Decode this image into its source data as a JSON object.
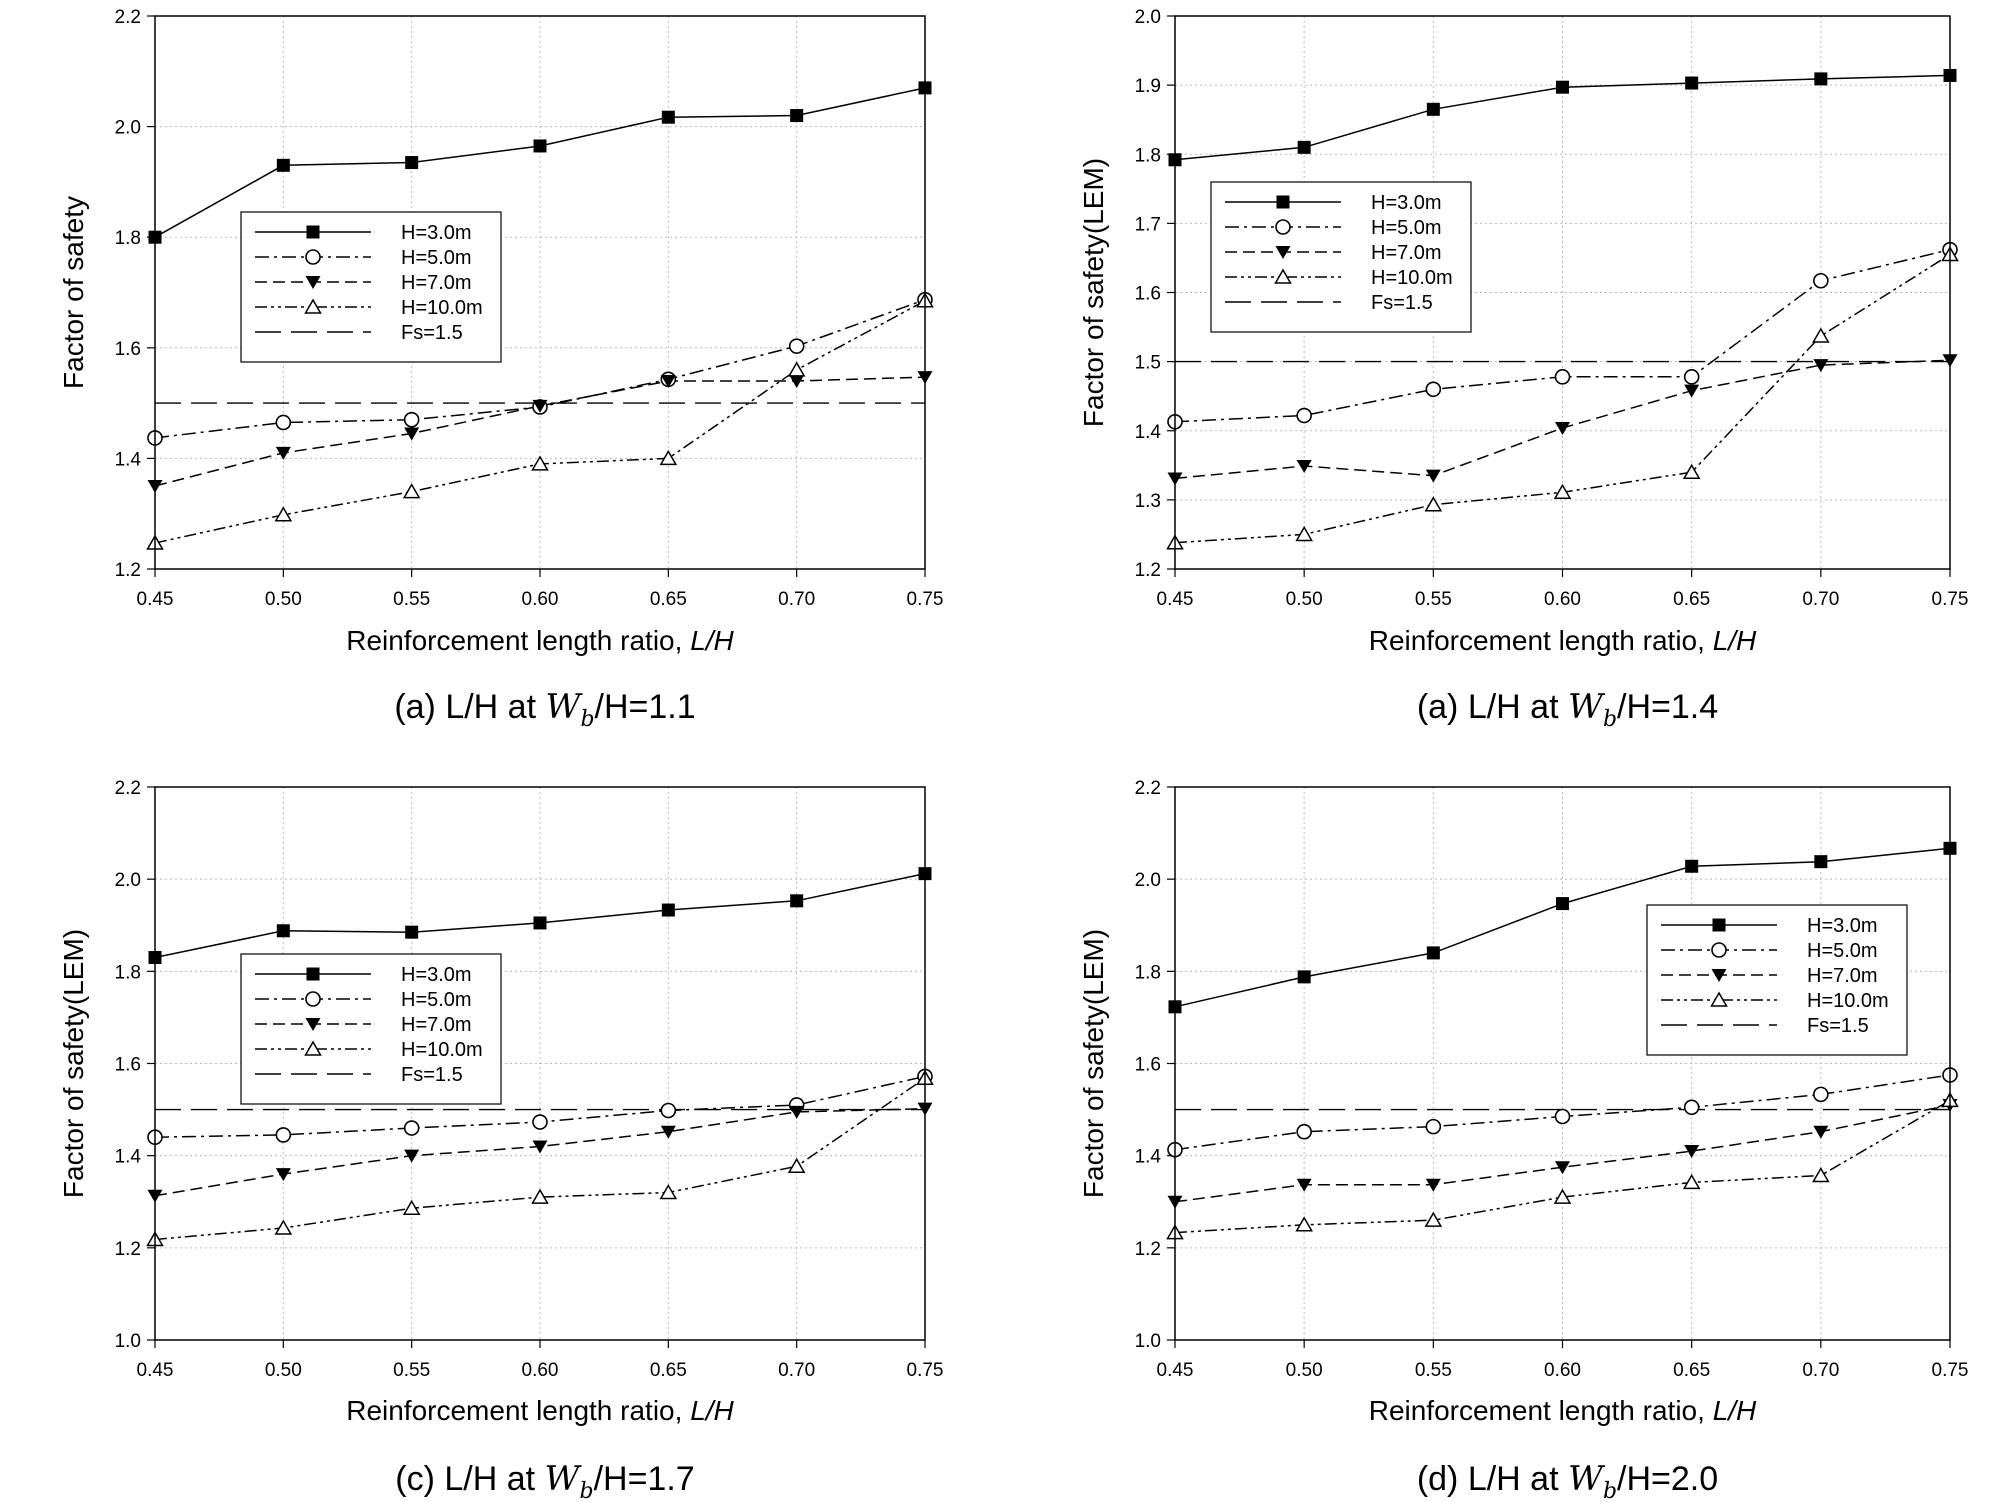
{
  "chart_data": [
    {
      "type": "line",
      "caption": {
        "prefix": "(a) L/H at ",
        "w": "W",
        "sub": "b",
        "suffix": "/H=1.1"
      },
      "xlabel": "Reinforcement length ratio, ",
      "xlabel_italic": "L/H",
      "ylabel": "Factor of safety",
      "xlim": [
        0.45,
        0.75
      ],
      "ylim": [
        1.2,
        2.2
      ],
      "x_ticks": [
        "0.45",
        "0.50",
        "0.55",
        "0.60",
        "0.65",
        "0.70",
        "0.75"
      ],
      "y_ticks": [
        "1.2",
        "1.4",
        "1.6",
        "1.8",
        "2.0",
        "2.2"
      ],
      "legend_position": "center-left",
      "x": [
        0.45,
        0.5,
        0.55,
        0.6,
        0.65,
        0.7,
        0.75
      ],
      "series": [
        {
          "name": "H=3.0m",
          "marker": "filled-square",
          "dash": "solid",
          "values": [
            1.8,
            1.93,
            1.935,
            1.965,
            2.017,
            2.02,
            2.07
          ]
        },
        {
          "name": "H=5.0m",
          "marker": "open-circle",
          "dash": "dashdot",
          "values": [
            1.437,
            1.465,
            1.47,
            1.493,
            1.543,
            1.603,
            1.687
          ]
        },
        {
          "name": "H=7.0m",
          "marker": "filled-triangle-down",
          "dash": "dashed",
          "values": [
            1.35,
            1.41,
            1.445,
            1.495,
            1.54,
            1.54,
            1.547
          ]
        },
        {
          "name": "H=10.0m",
          "marker": "open-triangle-up",
          "dash": "dashdotdot",
          "values": [
            1.247,
            1.298,
            1.34,
            1.39,
            1.4,
            1.56,
            1.685
          ]
        },
        {
          "name": "Fs=1.5",
          "marker": "none",
          "dash": "longdash",
          "values": [
            1.5,
            1.5,
            1.5,
            1.5,
            1.5,
            1.5,
            1.5
          ]
        }
      ]
    },
    {
      "type": "line",
      "caption": {
        "prefix": "(a) L/H at ",
        "w": "W",
        "sub": "b",
        "suffix": "/H=1.4"
      },
      "xlabel": "Reinforcement length ratio, ",
      "xlabel_italic": "L/H",
      "ylabel": "Factor of safety(LEM)",
      "xlim": [
        0.45,
        0.75
      ],
      "ylim": [
        1.2,
        2.0
      ],
      "x_ticks": [
        "0.45",
        "0.50",
        "0.55",
        "0.60",
        "0.65",
        "0.70",
        "0.75"
      ],
      "y_ticks": [
        "1.2",
        "1.3",
        "1.4",
        "1.5",
        "1.6",
        "1.7",
        "1.8",
        "1.9",
        "2.0"
      ],
      "legend_position": "center-left",
      "x": [
        0.45,
        0.5,
        0.55,
        0.6,
        0.65,
        0.7,
        0.75
      ],
      "series": [
        {
          "name": "H=3.0m",
          "marker": "filled-square",
          "dash": "solid",
          "values": [
            1.792,
            1.81,
            1.865,
            1.897,
            1.903,
            1.909,
            1.914
          ]
        },
        {
          "name": "H=5.0m",
          "marker": "open-circle",
          "dash": "dashdot",
          "values": [
            1.413,
            1.422,
            1.46,
            1.478,
            1.478,
            1.617,
            1.662
          ]
        },
        {
          "name": "H=7.0m",
          "marker": "filled-triangle-down",
          "dash": "dashed",
          "values": [
            1.331,
            1.349,
            1.335,
            1.404,
            1.458,
            1.495,
            1.502
          ]
        },
        {
          "name": "H=10.0m",
          "marker": "open-triangle-up",
          "dash": "dashdotdot",
          "values": [
            1.238,
            1.25,
            1.293,
            1.311,
            1.34,
            1.537,
            1.655
          ]
        },
        {
          "name": "Fs=1.5",
          "marker": "none",
          "dash": "longdash",
          "values": [
            1.5,
            1.5,
            1.5,
            1.5,
            1.5,
            1.5,
            1.5
          ]
        }
      ]
    },
    {
      "type": "line",
      "caption": {
        "prefix": "(c) L/H at ",
        "w": "W",
        "sub": "b",
        "suffix": "/H=1.7"
      },
      "xlabel": "Reinforcement length ratio, ",
      "xlabel_italic": "L/H",
      "ylabel": "Factor of safety(LEM)",
      "xlim": [
        0.45,
        0.75
      ],
      "ylim": [
        1.0,
        2.2
      ],
      "x_ticks": [
        "0.45",
        "0.50",
        "0.55",
        "0.60",
        "0.65",
        "0.70",
        "0.75"
      ],
      "y_ticks": [
        "1.0",
        "1.2",
        "1.4",
        "1.6",
        "1.8",
        "2.0",
        "2.2"
      ],
      "legend_position": "center-left",
      "x": [
        0.45,
        0.5,
        0.55,
        0.6,
        0.65,
        0.7,
        0.75
      ],
      "series": [
        {
          "name": "H=3.0m",
          "marker": "filled-square",
          "dash": "solid",
          "values": [
            1.83,
            1.888,
            1.885,
            1.905,
            1.933,
            1.953,
            2.012
          ]
        },
        {
          "name": "H=5.0m",
          "marker": "open-circle",
          "dash": "dashdot",
          "values": [
            1.44,
            1.445,
            1.46,
            1.473,
            1.498,
            1.51,
            1.572
          ]
        },
        {
          "name": "H=7.0m",
          "marker": "filled-triangle-down",
          "dash": "dashed",
          "values": [
            1.313,
            1.36,
            1.4,
            1.42,
            1.452,
            1.495,
            1.502
          ]
        },
        {
          "name": "H=10.0m",
          "marker": "open-triangle-up",
          "dash": "dashdotdot",
          "values": [
            1.218,
            1.243,
            1.286,
            1.31,
            1.32,
            1.377,
            1.568
          ]
        },
        {
          "name": "Fs=1.5",
          "marker": "none",
          "dash": "longdash",
          "values": [
            1.5,
            1.5,
            1.5,
            1.5,
            1.5,
            1.5,
            1.5
          ]
        }
      ]
    },
    {
      "type": "line",
      "caption": {
        "prefix": "(d) L/H at ",
        "w": "W",
        "sub": "b",
        "suffix": "/H=2.0"
      },
      "xlabel": "Reinforcement length ratio, ",
      "xlabel_italic": "L/H",
      "ylabel": "Factor of safety(LEM)",
      "xlim": [
        0.45,
        0.75
      ],
      "ylim": [
        1.0,
        2.2
      ],
      "x_ticks": [
        "0.45",
        "0.50",
        "0.55",
        "0.60",
        "0.65",
        "0.70",
        "0.75"
      ],
      "y_ticks": [
        "1.0",
        "1.2",
        "1.4",
        "1.6",
        "1.8",
        "2.0",
        "2.2"
      ],
      "legend_position": "center-right",
      "x": [
        0.45,
        0.5,
        0.55,
        0.6,
        0.65,
        0.7,
        0.75
      ],
      "series": [
        {
          "name": "H=3.0m",
          "marker": "filled-square",
          "dash": "solid",
          "values": [
            1.723,
            1.788,
            1.84,
            1.947,
            2.028,
            2.038,
            2.067
          ]
        },
        {
          "name": "H=5.0m",
          "marker": "open-circle",
          "dash": "dashdot",
          "values": [
            1.413,
            1.452,
            1.463,
            1.485,
            1.505,
            1.533,
            1.575
          ]
        },
        {
          "name": "H=7.0m",
          "marker": "filled-triangle-down",
          "dash": "dashed",
          "values": [
            1.3,
            1.337,
            1.337,
            1.375,
            1.41,
            1.452,
            1.51
          ]
        },
        {
          "name": "H=10.0m",
          "marker": "open-triangle-up",
          "dash": "dashdotdot",
          "values": [
            1.233,
            1.25,
            1.26,
            1.31,
            1.342,
            1.357,
            1.52
          ]
        },
        {
          "name": "Fs=1.5",
          "marker": "none",
          "dash": "longdash",
          "values": [
            1.5,
            1.5,
            1.5,
            1.5,
            1.5,
            1.5,
            1.5
          ]
        }
      ]
    }
  ]
}
